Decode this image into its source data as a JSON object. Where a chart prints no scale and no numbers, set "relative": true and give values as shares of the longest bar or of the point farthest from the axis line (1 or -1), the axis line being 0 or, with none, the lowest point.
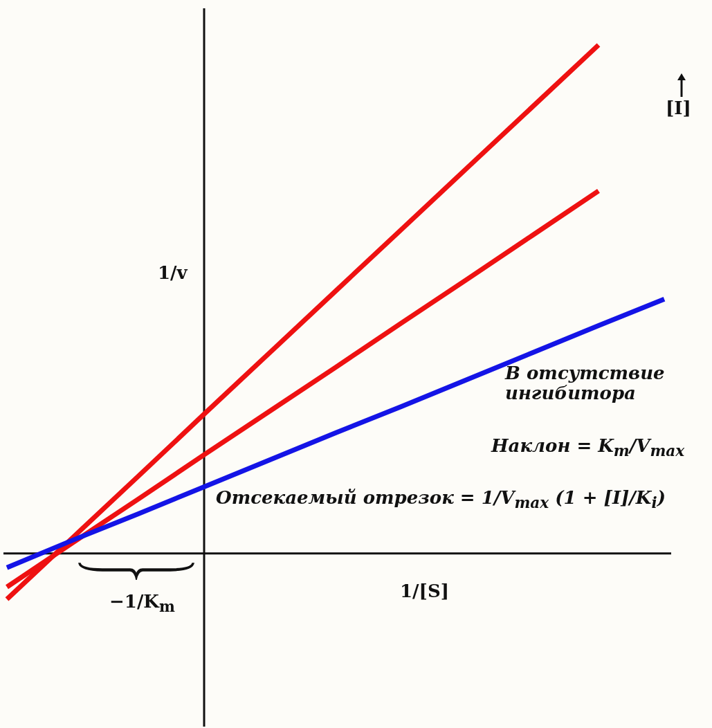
{
  "chart_data": {
    "type": "line",
    "relative": true,
    "xlabel": "1/[S]",
    "ylabel": "1/v",
    "categories": [
      null,
      null,
      null,
      null,
      null,
      null,
      null,
      null,
      null,
      null,
      null
    ],
    "series": [
      {
        "name": "В отсутствие ингибитора",
        "color": "#1414e6",
        "values": [
          -0.028,
          0.026,
          0.078,
          0.131,
          0.184,
          0.237,
          0.289,
          0.342,
          0.395,
          0.448,
          0.5
        ]
      },
      {
        "color": "#ee1111",
        "values": [
          -0.066,
          0.021,
          0.107,
          0.194,
          0.28,
          0.366,
          0.453,
          0.539,
          0.626,
          0.713,
          null
        ]
      },
      {
        "color": "#ee1111",
        "values": [
          -0.09,
          0.031,
          0.152,
          0.274,
          0.395,
          0.516,
          0.637,
          0.758,
          0.879,
          1.0,
          null
        ]
      }
    ],
    "annotations": [
      "−1/K$_{m}$",
      "[I]",
      "Наклон = K$_{m}$/V$_{max}$",
      "Отсекаемый отрезок = 1/V$_{max}$ (1 + [I]/K$_{i}$)"
    ],
    "legend": false,
    "marker": "none",
    "line_style": "solid"
  }
}
